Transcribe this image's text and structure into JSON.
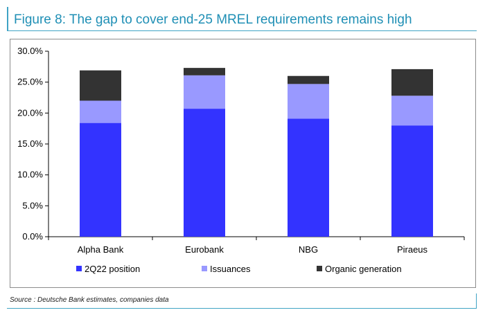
{
  "figure": {
    "title": "Figure 8: The gap to cover end-25 MREL requirements remains high",
    "source": "Source : Deutsche Bank estimates, companies data"
  },
  "chart_data": {
    "type": "bar",
    "stacked": true,
    "categories": [
      "Alpha Bank",
      "Eurobank",
      "NBG",
      "Piraeus"
    ],
    "series": [
      {
        "name": "2Q22 position",
        "color": "#3333ff",
        "values": [
          18.4,
          20.7,
          19.1,
          18.0
        ]
      },
      {
        "name": "Issuances",
        "color": "#9999ff",
        "values": [
          3.6,
          5.4,
          5.6,
          4.8
        ]
      },
      {
        "name": "Organic generation",
        "color": "#333333",
        "values": [
          4.9,
          1.2,
          1.3,
          4.3
        ]
      }
    ],
    "ylim": [
      0,
      30
    ],
    "yticks": [
      0,
      5,
      10,
      15,
      20,
      25,
      30
    ],
    "ytick_labels": [
      "0.0%",
      "5.0%",
      "10.0%",
      "15.0%",
      "20.0%",
      "25.0%",
      "30.0%"
    ],
    "legend_position": "bottom",
    "grid": false
  }
}
